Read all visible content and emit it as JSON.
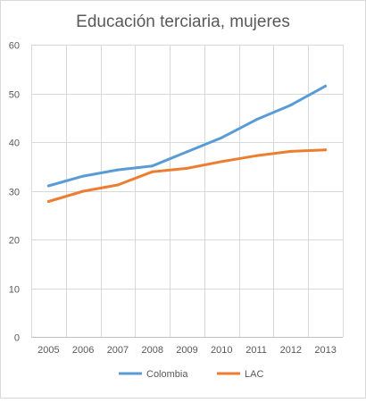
{
  "chart_data": {
    "type": "line",
    "title": "Educación terciaria, mujeres",
    "categories": [
      "2005",
      "2006",
      "2007",
      "2008",
      "2009",
      "2010",
      "2011",
      "2012",
      "2013"
    ],
    "ylim": [
      0,
      60
    ],
    "yticks": [
      0,
      10,
      20,
      30,
      40,
      50,
      60
    ],
    "grid": true,
    "legend": "bottom",
    "series": [
      {
        "name": "Colombia",
        "color": "#5b9bd5",
        "values": [
          31,
          33,
          34.3,
          35.1,
          38,
          40.9,
          44.6,
          47.6,
          51.5
        ]
      },
      {
        "name": "LAC",
        "color": "#ed7d31",
        "values": [
          27.8,
          29.9,
          31.2,
          33.9,
          34.6,
          36,
          37.2,
          38.1,
          38.4
        ]
      }
    ]
  }
}
